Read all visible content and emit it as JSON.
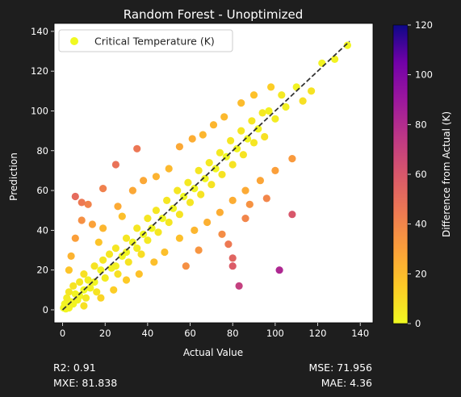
{
  "chart_data": {
    "type": "scatter",
    "title": "Random Forest - Unoptimized",
    "xlabel": "Actual Value",
    "ylabel": "Prediction",
    "xlim": [
      -4,
      146
    ],
    "ylim": [
      -6.5,
      144
    ],
    "x_ticks": [
      0,
      20,
      40,
      60,
      80,
      100,
      120,
      140
    ],
    "y_ticks": [
      0,
      20,
      40,
      60,
      80,
      100,
      120,
      140
    ],
    "grid": false,
    "legend": {
      "placement": "top-left",
      "entries": [
        "Critical Temperature (K)"
      ]
    },
    "colorbar": {
      "label": "Difference from Actual (K)",
      "range": [
        0,
        120
      ],
      "ticks": [
        0,
        20,
        40,
        60,
        80,
        100,
        120
      ],
      "colormap": "plasma_r"
    },
    "reference_line": {
      "style": "dashed",
      "color": "#333333",
      "from": [
        0,
        0
      ],
      "to": [
        135,
        135
      ]
    },
    "points": [
      {
        "x": 0.5,
        "y": 1,
        "d": 0.5
      },
      {
        "x": 1,
        "y": 3,
        "d": 2
      },
      {
        "x": 1.5,
        "y": 0.5,
        "d": 1
      },
      {
        "x": 2,
        "y": 6,
        "d": 4
      },
      {
        "x": 2,
        "y": 2,
        "d": 0
      },
      {
        "x": 3,
        "y": 9,
        "d": 6
      },
      {
        "x": 3,
        "y": 1,
        "d": 2
      },
      {
        "x": 4,
        "y": 4,
        "d": 0
      },
      {
        "x": 5,
        "y": 12,
        "d": 7
      },
      {
        "x": 5,
        "y": 3,
        "d": 2
      },
      {
        "x": 6,
        "y": 8,
        "d": 2
      },
      {
        "x": 7,
        "y": 5,
        "d": 2
      },
      {
        "x": 8,
        "y": 14,
        "d": 6
      },
      {
        "x": 8,
        "y": 7,
        "d": 1
      },
      {
        "x": 10,
        "y": 10,
        "d": 0
      },
      {
        "x": 10,
        "y": 18,
        "d": 8
      },
      {
        "x": 11,
        "y": 6,
        "d": 5
      },
      {
        "x": 12,
        "y": 15,
        "d": 3
      },
      {
        "x": 13,
        "y": 11,
        "d": 2
      },
      {
        "x": 15,
        "y": 22,
        "d": 7
      },
      {
        "x": 15,
        "y": 14,
        "d": 1
      },
      {
        "x": 16,
        "y": 9,
        "d": 7
      },
      {
        "x": 18,
        "y": 20,
        "d": 2
      },
      {
        "x": 19,
        "y": 25,
        "d": 6
      },
      {
        "x": 20,
        "y": 16,
        "d": 4
      },
      {
        "x": 22,
        "y": 28,
        "d": 6
      },
      {
        "x": 23,
        "y": 21,
        "d": 2
      },
      {
        "x": 25,
        "y": 31,
        "d": 6
      },
      {
        "x": 25,
        "y": 22,
        "d": 3
      },
      {
        "x": 26,
        "y": 18,
        "d": 8
      },
      {
        "x": 28,
        "y": 27,
        "d": 1
      },
      {
        "x": 30,
        "y": 36,
        "d": 6
      },
      {
        "x": 30,
        "y": 29,
        "d": 1
      },
      {
        "x": 31,
        "y": 24,
        "d": 7
      },
      {
        "x": 33,
        "y": 34,
        "d": 1
      },
      {
        "x": 35,
        "y": 41,
        "d": 6
      },
      {
        "x": 35,
        "y": 31,
        "d": 4
      },
      {
        "x": 37,
        "y": 28,
        "d": 9
      },
      {
        "x": 38,
        "y": 38,
        "d": 0
      },
      {
        "x": 40,
        "y": 46,
        "d": 6
      },
      {
        "x": 40,
        "y": 35,
        "d": 5
      },
      {
        "x": 42,
        "y": 41,
        "d": 1
      },
      {
        "x": 44,
        "y": 50,
        "d": 6
      },
      {
        "x": 45,
        "y": 39,
        "d": 6
      },
      {
        "x": 47,
        "y": 46,
        "d": 1
      },
      {
        "x": 49,
        "y": 55,
        "d": 6
      },
      {
        "x": 50,
        "y": 44,
        "d": 6
      },
      {
        "x": 52,
        "y": 51,
        "d": 1
      },
      {
        "x": 54,
        "y": 60,
        "d": 6
      },
      {
        "x": 55,
        "y": 48,
        "d": 7
      },
      {
        "x": 57,
        "y": 57,
        "d": 0
      },
      {
        "x": 59,
        "y": 64,
        "d": 5
      },
      {
        "x": 60,
        "y": 54,
        "d": 6
      },
      {
        "x": 62,
        "y": 61,
        "d": 1
      },
      {
        "x": 64,
        "y": 70,
        "d": 6
      },
      {
        "x": 65,
        "y": 58,
        "d": 7
      },
      {
        "x": 67,
        "y": 66,
        "d": 1
      },
      {
        "x": 69,
        "y": 74,
        "d": 5
      },
      {
        "x": 70,
        "y": 63,
        "d": 7
      },
      {
        "x": 72,
        "y": 71,
        "d": 1
      },
      {
        "x": 74,
        "y": 79,
        "d": 5
      },
      {
        "x": 75,
        "y": 68,
        "d": 7
      },
      {
        "x": 77,
        "y": 77,
        "d": 0
      },
      {
        "x": 79,
        "y": 85,
        "d": 6
      },
      {
        "x": 80,
        "y": 73,
        "d": 7
      },
      {
        "x": 82,
        "y": 81,
        "d": 1
      },
      {
        "x": 84,
        "y": 90,
        "d": 6
      },
      {
        "x": 85,
        "y": 78,
        "d": 7
      },
      {
        "x": 87,
        "y": 86,
        "d": 1
      },
      {
        "x": 89,
        "y": 95,
        "d": 6
      },
      {
        "x": 90,
        "y": 84,
        "d": 6
      },
      {
        "x": 92,
        "y": 91,
        "d": 1
      },
      {
        "x": 94,
        "y": 99,
        "d": 5
      },
      {
        "x": 95,
        "y": 87,
        "d": 8
      },
      {
        "x": 97,
        "y": 100,
        "d": 3
      },
      {
        "x": 100,
        "y": 96,
        "d": 4
      },
      {
        "x": 103,
        "y": 108,
        "d": 5
      },
      {
        "x": 105,
        "y": 102,
        "d": 3
      },
      {
        "x": 110,
        "y": 112,
        "d": 2
      },
      {
        "x": 113,
        "y": 105,
        "d": 8
      },
      {
        "x": 117,
        "y": 110,
        "d": 7
      },
      {
        "x": 122,
        "y": 124,
        "d": 2
      },
      {
        "x": 128,
        "y": 126,
        "d": 2
      },
      {
        "x": 134,
        "y": 133,
        "d": 1
      },
      {
        "x": 3,
        "y": 20,
        "d": 17
      },
      {
        "x": 4,
        "y": 27,
        "d": 23
      },
      {
        "x": 6,
        "y": 36,
        "d": 30
      },
      {
        "x": 9,
        "y": 45,
        "d": 36
      },
      {
        "x": 9,
        "y": 54,
        "d": 45
      },
      {
        "x": 6,
        "y": 57,
        "d": 51
      },
      {
        "x": 12,
        "y": 53,
        "d": 41
      },
      {
        "x": 14,
        "y": 43,
        "d": 29
      },
      {
        "x": 17,
        "y": 34,
        "d": 17
      },
      {
        "x": 19,
        "y": 41,
        "d": 22
      },
      {
        "x": 26,
        "y": 52,
        "d": 26
      },
      {
        "x": 28,
        "y": 47,
        "d": 19
      },
      {
        "x": 33,
        "y": 60,
        "d": 27
      },
      {
        "x": 38,
        "y": 65,
        "d": 27
      },
      {
        "x": 44,
        "y": 67,
        "d": 23
      },
      {
        "x": 50,
        "y": 71,
        "d": 21
      },
      {
        "x": 55,
        "y": 82,
        "d": 27
      },
      {
        "x": 61,
        "y": 86,
        "d": 25
      },
      {
        "x": 66,
        "y": 88,
        "d": 22
      },
      {
        "x": 71,
        "y": 93,
        "d": 22
      },
      {
        "x": 76,
        "y": 97,
        "d": 21
      },
      {
        "x": 84,
        "y": 104,
        "d": 20
      },
      {
        "x": 90,
        "y": 108,
        "d": 18
      },
      {
        "x": 98,
        "y": 112,
        "d": 14
      },
      {
        "x": 19,
        "y": 61,
        "d": 42
      },
      {
        "x": 25,
        "y": 73,
        "d": 48
      },
      {
        "x": 35,
        "y": 81,
        "d": 46
      },
      {
        "x": 10,
        "y": 2,
        "d": 8
      },
      {
        "x": 18,
        "y": 6,
        "d": 12
      },
      {
        "x": 24,
        "y": 10,
        "d": 14
      },
      {
        "x": 30,
        "y": 15,
        "d": 15
      },
      {
        "x": 36,
        "y": 18,
        "d": 18
      },
      {
        "x": 43,
        "y": 24,
        "d": 19
      },
      {
        "x": 48,
        "y": 29,
        "d": 19
      },
      {
        "x": 55,
        "y": 36,
        "d": 19
      },
      {
        "x": 62,
        "y": 40,
        "d": 22
      },
      {
        "x": 68,
        "y": 44,
        "d": 24
      },
      {
        "x": 74,
        "y": 49,
        "d": 25
      },
      {
        "x": 80,
        "y": 55,
        "d": 25
      },
      {
        "x": 86,
        "y": 60,
        "d": 26
      },
      {
        "x": 93,
        "y": 65,
        "d": 28
      },
      {
        "x": 100,
        "y": 70,
        "d": 30
      },
      {
        "x": 58,
        "y": 22,
        "d": 36
      },
      {
        "x": 64,
        "y": 30,
        "d": 34
      },
      {
        "x": 75,
        "y": 38,
        "d": 37
      },
      {
        "x": 88,
        "y": 53,
        "d": 35
      },
      {
        "x": 78,
        "y": 33,
        "d": 45
      },
      {
        "x": 86,
        "y": 46,
        "d": 40
      },
      {
        "x": 96,
        "y": 56,
        "d": 40
      },
      {
        "x": 108,
        "y": 76,
        "d": 32
      },
      {
        "x": 80,
        "y": 26,
        "d": 54
      },
      {
        "x": 80,
        "y": 22,
        "d": 58
      },
      {
        "x": 108,
        "y": 48,
        "d": 60
      },
      {
        "x": 83,
        "y": 12,
        "d": 71
      },
      {
        "x": 102,
        "y": 20,
        "d": 82
      }
    ]
  },
  "stats": {
    "r2": "R2: 0.91",
    "mxe": "MXE: 81.838",
    "mse": "MSE: 71.956",
    "mae": "MAE: 4.36"
  }
}
